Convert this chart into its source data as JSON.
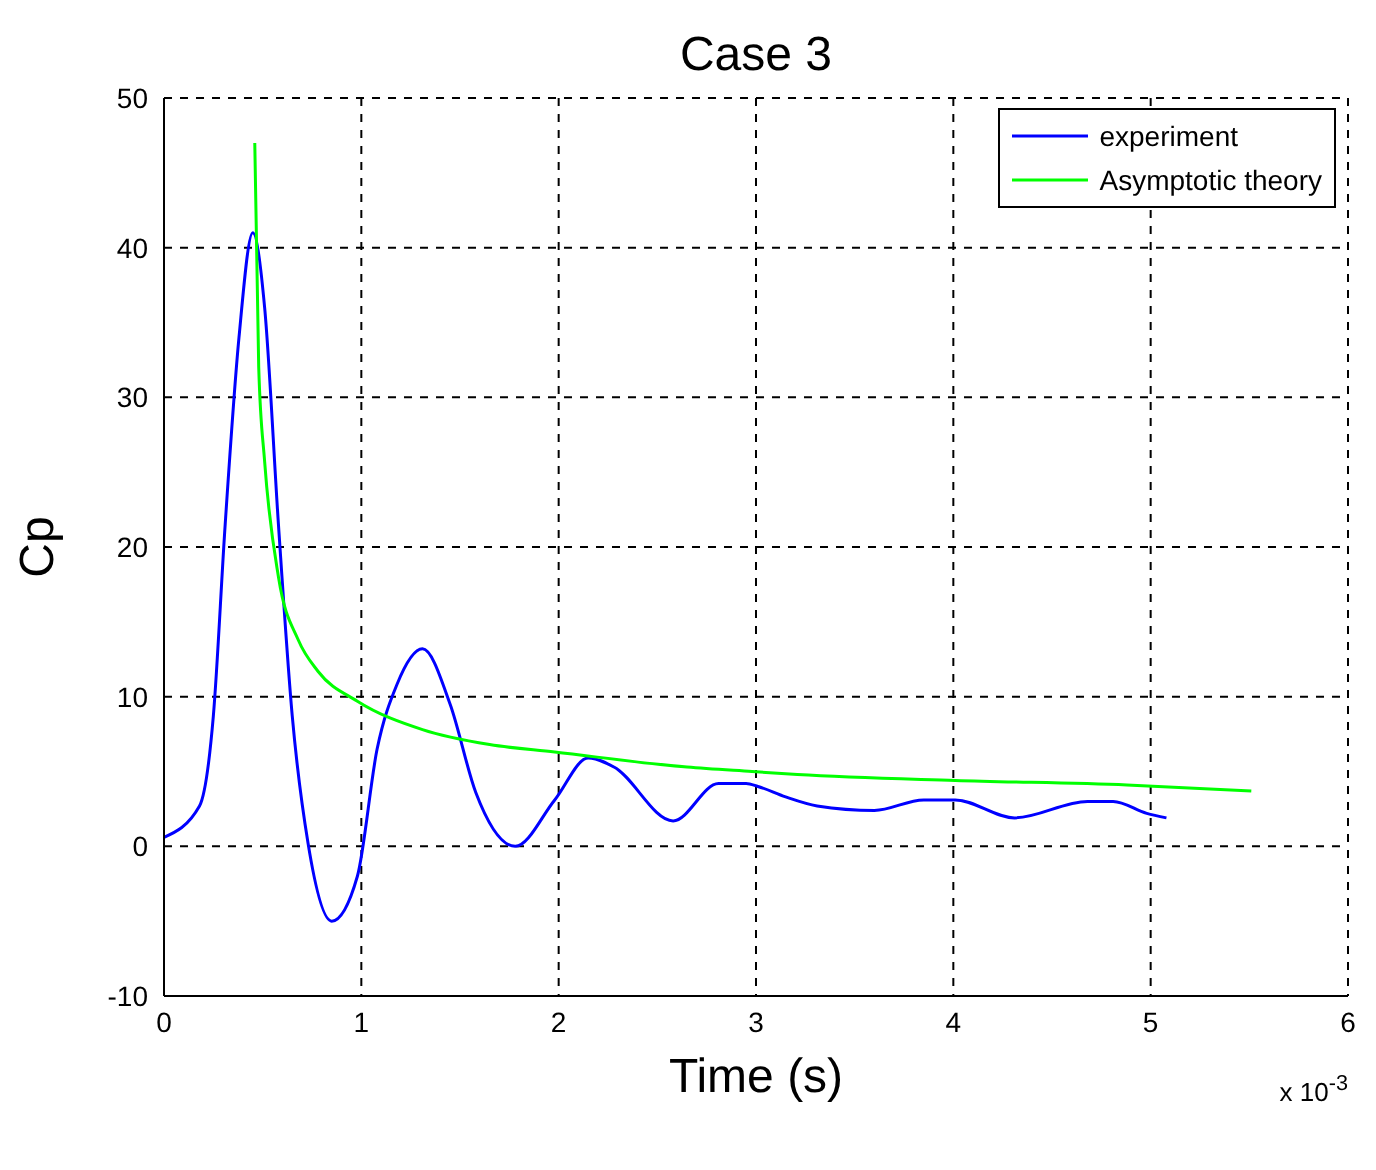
{
  "chart_data": {
    "type": "line",
    "title": "Case 3",
    "xlabel": "Time (s)",
    "ylabel": "Cp",
    "annotations": [
      "x 10$^{-3}$"
    ],
    "xlim": [
      0,
      6
    ],
    "xticks": [
      0,
      1,
      2,
      3,
      4,
      5,
      6
    ],
    "ylim": [
      -10,
      50
    ],
    "yticks": [
      -10,
      0,
      10,
      20,
      30,
      40,
      50
    ],
    "grid": true,
    "legend": "top right",
    "marker": "none",
    "line_style": "solid",
    "series": [
      {
        "name": "experiment",
        "color": "#0000ff",
        "x": [
          0,
          0.18,
          0.25,
          0.31,
          0.38,
          0.45,
          0.51,
          0.58,
          0.65,
          0.73,
          0.85,
          0.98,
          1.08,
          1.18,
          1.31,
          1.45,
          1.58,
          1.78,
          1.98,
          2.15,
          2.28,
          2.58,
          2.81,
          2.95,
          3.01,
          3.15,
          3.31,
          3.6,
          3.85,
          4.01,
          4.31,
          4.68,
          4.81,
          4.98,
          5.08
        ],
        "values": [
          0.6,
          2.7,
          8.7,
          21.5,
          34,
          41,
          36,
          21.5,
          8.7,
          0.2,
          -5,
          -2,
          6.5,
          10.8,
          13.2,
          9.5,
          3.6,
          0,
          3.1,
          5.9,
          5.3,
          1.7,
          4.2,
          4.2,
          4,
          3.3,
          2.7,
          2.4,
          3.1,
          3.1,
          1.9,
          3,
          3,
          2.2,
          1.9
        ]
      },
      {
        "name": "Asymptotic theory",
        "color": "#00ff00",
        "x": [
          0.46,
          0.48,
          0.51,
          0.58,
          0.68,
          0.78,
          0.98,
          1.31,
          1.65,
          1.98,
          2.65,
          2.98,
          3.21,
          4.01,
          4.88,
          5.51
        ],
        "values": [
          47,
          32,
          25.7,
          18,
          13.8,
          11.7,
          9.7,
          7.8,
          6.8,
          6.3,
          5.3,
          5,
          4.8,
          4.4,
          4.1,
          3.7
        ]
      }
    ]
  }
}
